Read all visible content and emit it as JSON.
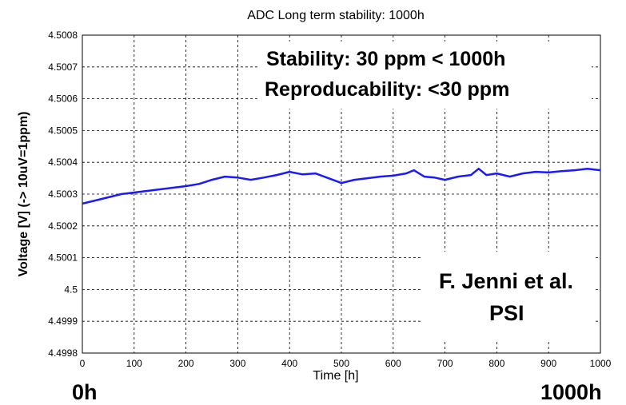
{
  "chart_data": {
    "type": "line",
    "title": "ADC Long term stability: 1000h",
    "xlabel": "Time [h]",
    "ylabel": "Voltage [V] (-> 10uV=1ppm)",
    "xlim": [
      0,
      1000
    ],
    "ylim": [
      4.4998,
      4.5008
    ],
    "grid": true,
    "x_ticks": [
      "0",
      "100",
      "200",
      "300",
      "400",
      "500",
      "600",
      "700",
      "800",
      "900",
      "1000"
    ],
    "y_ticks": [
      "4.5008",
      "4.5007",
      "4.5006",
      "4.5005",
      "4.5004",
      "4.5003",
      "4.5002",
      "4.5001",
      "4.5",
      "4.4999",
      "4.4998"
    ],
    "series": [
      {
        "color": "#1a1aff",
        "x": [
          0,
          25,
          50,
          75,
          100,
          125,
          150,
          175,
          200,
          225,
          250,
          275,
          300,
          325,
          350,
          375,
          400,
          425,
          450,
          475,
          500,
          525,
          550,
          575,
          600,
          625,
          640,
          660,
          680,
          700,
          725,
          750,
          765,
          780,
          800,
          825,
          850,
          875,
          900,
          925,
          950,
          975,
          1000
        ],
        "y": [
          4.50027,
          4.50028,
          4.50029,
          4.5003,
          4.500305,
          4.50031,
          4.500315,
          4.50032,
          4.500325,
          4.500332,
          4.500345,
          4.500355,
          4.500352,
          4.500345,
          4.500352,
          4.50036,
          4.50037,
          4.500362,
          4.500365,
          4.50035,
          4.500335,
          4.500345,
          4.50035,
          4.500355,
          4.500358,
          4.500365,
          4.500375,
          4.500355,
          4.500352,
          4.500345,
          4.500355,
          4.50036,
          4.50038,
          4.50036,
          4.500365,
          4.500355,
          4.500365,
          4.50037,
          4.500368,
          4.500372,
          4.500375,
          4.50038,
          4.500375
        ]
      }
    ]
  },
  "annotations": {
    "stability": "Stability: 30 ppm < 1000h",
    "reproducibility": "Reproducability: <30 ppm",
    "author": "F. Jenni et al.",
    "institute": "PSI",
    "start_label": "0h",
    "end_label": "1000h"
  }
}
